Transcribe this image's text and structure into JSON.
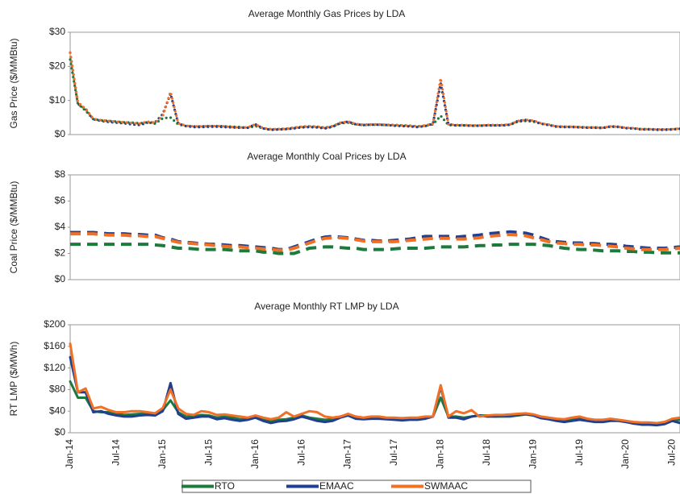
{
  "chart_data": [
    {
      "type": "line",
      "title": "Average Monthly Gas Prices by LDA",
      "y_label": "Gas Price ($/MMBtu)",
      "line_style": "dotted",
      "ylim": [
        0,
        30
      ],
      "yticks": [
        {
          "value": 0,
          "label": "$0"
        },
        {
          "value": 10,
          "label": "$10"
        },
        {
          "value": 20,
          "label": "$20"
        },
        {
          "value": 30,
          "label": "$30"
        }
      ],
      "series": [
        {
          "color": "#1e7a3c",
          "values": [
            22,
            9,
            7,
            4.5,
            4.2,
            4,
            3.8,
            3.6,
            3.5,
            3.3,
            3.6,
            3.2,
            4.8,
            5,
            3,
            2.5,
            2.4,
            2.4,
            2.5,
            2.5,
            2.4,
            2.3,
            2.2,
            2,
            2.5,
            1.8,
            1.5,
            1.6,
            1.7,
            2,
            2.3,
            2.4,
            2.3,
            2,
            2.4,
            3.3,
            3.5,
            3,
            2.8,
            2.9,
            2.9,
            2.8,
            2.8,
            2.7,
            2.6,
            2.4,
            2.6,
            3,
            5.5,
            2.8,
            2.7,
            2.7,
            2.6,
            2.6,
            2.7,
            2.7,
            2.7,
            2.9,
            3.8,
            4,
            3.8,
            3.2,
            2.8,
            2.4,
            2.3,
            2.3,
            2.2,
            2.1,
            2.1,
            2,
            2.3,
            2.2,
            1.9,
            1.8,
            1.6,
            1.6,
            1.5,
            1.5,
            1.6,
            1.7
          ]
        },
        {
          "color": "#203f8f",
          "values": [
            24,
            9,
            7.5,
            4.5,
            4,
            3.7,
            3.5,
            3.3,
            3,
            2.8,
            3.5,
            3.6,
            6,
            12,
            3.2,
            2.5,
            2.2,
            2.2,
            2.3,
            2.3,
            2.2,
            2.1,
            2,
            2,
            3,
            1.8,
            1.4,
            1.5,
            1.6,
            1.8,
            2.1,
            2.2,
            2.1,
            1.8,
            2.3,
            3.4,
            3.8,
            3,
            2.8,
            2.9,
            2.9,
            2.8,
            2.6,
            2.5,
            2.4,
            2.2,
            2.5,
            3.2,
            15,
            3,
            2.7,
            2.7,
            2.6,
            2.6,
            2.7,
            2.7,
            2.7,
            2.9,
            4,
            4.3,
            4,
            3.2,
            2.8,
            2.3,
            2.2,
            2.2,
            2.1,
            2,
            2,
            1.9,
            2.4,
            2.3,
            1.9,
            1.8,
            1.5,
            1.5,
            1.4,
            1.4,
            1.5,
            1.7
          ]
        },
        {
          "color": "#f07026",
          "values": [
            24,
            9.5,
            7.5,
            4.6,
            4.2,
            4,
            3.8,
            3.6,
            3.4,
            3.2,
            3.8,
            3.5,
            5.5,
            12.5,
            3.3,
            2.6,
            2.4,
            2.4,
            2.5,
            2.5,
            2.4,
            2.2,
            2.1,
            2.1,
            3,
            1.9,
            1.6,
            1.6,
            1.7,
            2,
            2.3,
            2.4,
            2.3,
            2,
            2.5,
            3.5,
            3.8,
            3.1,
            2.9,
            3,
            3,
            2.9,
            2.8,
            2.7,
            2.6,
            2.4,
            2.7,
            3.2,
            16.5,
            3,
            2.8,
            2.8,
            2.7,
            2.7,
            2.8,
            2.8,
            2.8,
            3,
            4,
            4.3,
            4.1,
            3.3,
            2.9,
            2.4,
            2.3,
            2.3,
            2.2,
            2.1,
            2.1,
            2,
            2.4,
            2.3,
            2,
            1.9,
            1.6,
            1.6,
            1.5,
            1.5,
            1.6,
            1.8
          ]
        }
      ]
    },
    {
      "type": "line",
      "title": "Average Monthly Coal Prices by LDA",
      "y_label": "Coal Price ($/MMBtu)",
      "line_style": "dashed",
      "ylim": [
        0,
        8
      ],
      "yticks": [
        {
          "value": 0,
          "label": "$0"
        },
        {
          "value": 2,
          "label": "$2"
        },
        {
          "value": 4,
          "label": "$4"
        },
        {
          "value": 6,
          "label": "$6"
        },
        {
          "value": 8,
          "label": "$8"
        }
      ],
      "series": [
        {
          "color": "#1e7a3c",
          "values": [
            2.7,
            2.7,
            2.7,
            2.7,
            2.7,
            2.7,
            2.7,
            2.7,
            2.7,
            2.7,
            2.7,
            2.65,
            2.6,
            2.5,
            2.4,
            2.4,
            2.35,
            2.3,
            2.3,
            2.3,
            2.3,
            2.25,
            2.2,
            2.2,
            2.2,
            2.1,
            2.1,
            2,
            2,
            2,
            2.2,
            2.4,
            2.45,
            2.5,
            2.5,
            2.45,
            2.4,
            2.4,
            2.3,
            2.3,
            2.3,
            2.3,
            2.35,
            2.4,
            2.4,
            2.4,
            2.4,
            2.45,
            2.5,
            2.5,
            2.5,
            2.5,
            2.55,
            2.6,
            2.6,
            2.65,
            2.65,
            2.7,
            2.7,
            2.7,
            2.7,
            2.65,
            2.6,
            2.5,
            2.4,
            2.35,
            2.3,
            2.3,
            2.25,
            2.2,
            2.2,
            2.2,
            2.15,
            2.15,
            2.1,
            2.1,
            2.05,
            2.05,
            2.05,
            2.05
          ]
        },
        {
          "color": "#203f8f",
          "values": [
            3.6,
            3.6,
            3.6,
            3.6,
            3.55,
            3.5,
            3.5,
            3.5,
            3.45,
            3.45,
            3.4,
            3.4,
            3.2,
            3.1,
            2.9,
            2.85,
            2.8,
            2.75,
            2.7,
            2.7,
            2.65,
            2.6,
            2.6,
            2.55,
            2.5,
            2.45,
            2.4,
            2.3,
            2.3,
            2.5,
            2.7,
            2.9,
            3.1,
            3.25,
            3.3,
            3.25,
            3.2,
            3.1,
            3,
            3,
            2.95,
            2.95,
            3,
            3.05,
            3.1,
            3.2,
            3.3,
            3.3,
            3.3,
            3.3,
            3.25,
            3.3,
            3.35,
            3.4,
            3.5,
            3.55,
            3.6,
            3.65,
            3.6,
            3.55,
            3.4,
            3.2,
            3,
            2.9,
            2.85,
            2.8,
            2.8,
            2.75,
            2.75,
            2.7,
            2.7,
            2.65,
            2.55,
            2.5,
            2.45,
            2.4,
            2.4,
            2.4,
            2.45,
            2.5
          ]
        },
        {
          "color": "#f07026",
          "values": [
            3.5,
            3.5,
            3.5,
            3.5,
            3.45,
            3.4,
            3.4,
            3.4,
            3.35,
            3.35,
            3.3,
            3.3,
            3.15,
            3,
            2.85,
            2.8,
            2.75,
            2.7,
            2.65,
            2.6,
            2.55,
            2.5,
            2.5,
            2.45,
            2.4,
            2.35,
            2.3,
            2.25,
            2.25,
            2.4,
            2.6,
            2.8,
            3,
            3.15,
            3.2,
            3.2,
            3.15,
            3.05,
            2.95,
            2.9,
            2.9,
            2.9,
            2.9,
            2.95,
            3,
            3.05,
            3.1,
            3.15,
            3.15,
            3.15,
            3.1,
            3.1,
            3.15,
            3.2,
            3.3,
            3.35,
            3.4,
            3.45,
            3.4,
            3.35,
            3.2,
            3.05,
            2.9,
            2.8,
            2.75,
            2.7,
            2.7,
            2.65,
            2.65,
            2.6,
            2.55,
            2.5,
            2.4,
            2.35,
            2.3,
            2.3,
            2.3,
            2.3,
            2.35,
            2.4
          ]
        }
      ]
    },
    {
      "type": "line",
      "title": "Average Monthly RT LMP by LDA",
      "y_label": "RT LMP ($/MWh)",
      "line_style": "solid",
      "ylim": [
        0,
        200
      ],
      "yticks": [
        {
          "value": 0,
          "label": "$0"
        },
        {
          "value": 40,
          "label": "$40"
        },
        {
          "value": 80,
          "label": "$80"
        },
        {
          "value": 120,
          "label": "$120"
        },
        {
          "value": 160,
          "label": "$160"
        },
        {
          "value": 200,
          "label": "$200"
        }
      ],
      "categories": [
        "Jan-14",
        null,
        null,
        null,
        null,
        null,
        "Jul-14",
        null,
        null,
        null,
        null,
        null,
        "Jan-15",
        null,
        null,
        null,
        null,
        null,
        "Jul-15",
        null,
        null,
        null,
        null,
        null,
        "Jan-16",
        null,
        null,
        null,
        null,
        null,
        "Jul-16",
        null,
        null,
        null,
        null,
        null,
        "Jan-17",
        null,
        null,
        null,
        null,
        null,
        "Jul-17",
        null,
        null,
        null,
        null,
        null,
        "Jan-18",
        null,
        null,
        null,
        null,
        null,
        "Jul-18",
        null,
        null,
        null,
        null,
        null,
        "Jan-19",
        null,
        null,
        null,
        null,
        null,
        "Jul-19",
        null,
        null,
        null,
        null,
        null,
        "Jan-20",
        null,
        null,
        null,
        null,
        null,
        "Jul-20",
        null
      ],
      "series": [
        {
          "name": "RTO",
          "color": "#1e7a3c",
          "values": [
            95,
            65,
            65,
            40,
            38,
            38,
            35,
            33,
            34,
            35,
            35,
            33,
            42,
            60,
            38,
            30,
            30,
            33,
            32,
            28,
            30,
            28,
            25,
            26,
            28,
            24,
            22,
            24,
            25,
            28,
            32,
            28,
            26,
            24,
            25,
            30,
            33,
            28,
            27,
            28,
            28,
            27,
            26,
            25,
            26,
            26,
            27,
            30,
            65,
            30,
            30,
            28,
            30,
            32,
            32,
            30,
            30,
            30,
            32,
            34,
            32,
            28,
            26,
            24,
            22,
            24,
            26,
            24,
            22,
            22,
            24,
            23,
            20,
            18,
            17,
            17,
            16,
            18,
            22,
            24
          ]
        },
        {
          "name": "EMAAC",
          "color": "#203f8f",
          "values": [
            140,
            75,
            75,
            38,
            40,
            35,
            32,
            30,
            30,
            32,
            33,
            32,
            40,
            92,
            35,
            26,
            28,
            30,
            30,
            25,
            27,
            24,
            22,
            24,
            28,
            22,
            18,
            21,
            22,
            25,
            30,
            26,
            22,
            20,
            22,
            28,
            32,
            26,
            25,
            26,
            26,
            25,
            24,
            23,
            24,
            24,
            26,
            30,
            85,
            28,
            28,
            25,
            30,
            32,
            30,
            30,
            31,
            32,
            33,
            35,
            32,
            27,
            25,
            22,
            20,
            22,
            24,
            22,
            20,
            20,
            22,
            22,
            20,
            17,
            15,
            15,
            14,
            16,
            22,
            18
          ]
        },
        {
          "name": "SWMAAC",
          "color": "#f07026",
          "values": [
            165,
            75,
            82,
            45,
            48,
            42,
            38,
            38,
            40,
            40,
            38,
            36,
            46,
            80,
            45,
            35,
            33,
            40,
            38,
            33,
            34,
            32,
            30,
            28,
            32,
            28,
            25,
            28,
            38,
            30,
            35,
            40,
            38,
            30,
            28,
            30,
            35,
            30,
            28,
            30,
            30,
            28,
            28,
            27,
            28,
            28,
            30,
            30,
            88,
            30,
            40,
            36,
            42,
            30,
            32,
            33,
            33,
            34,
            35,
            36,
            34,
            30,
            28,
            26,
            25,
            28,
            30,
            26,
            24,
            24,
            26,
            24,
            22,
            20,
            19,
            19,
            18,
            20,
            26,
            28
          ]
        }
      ]
    }
  ]
}
